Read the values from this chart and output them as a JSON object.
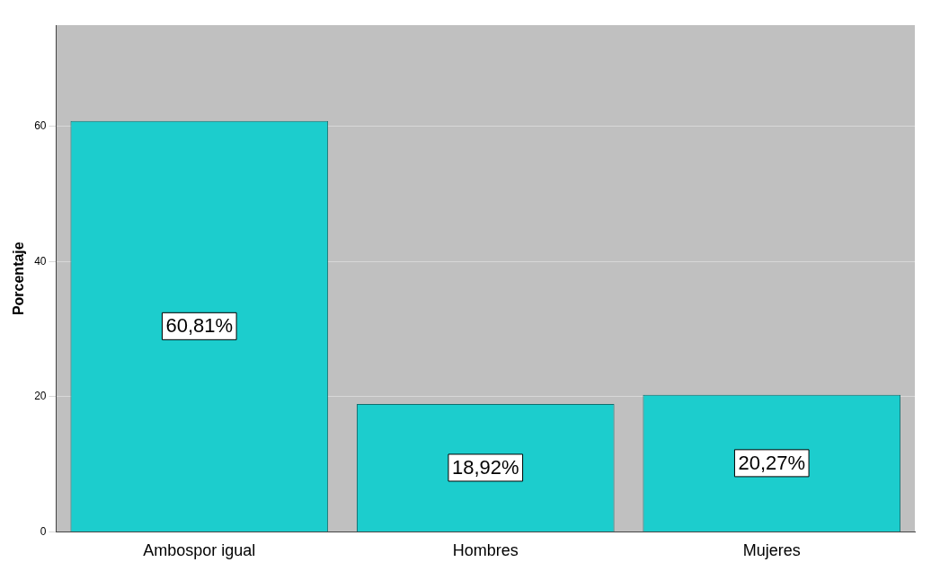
{
  "chart_data": {
    "type": "bar",
    "ylabel": "Porcentaje",
    "categories": [
      "Ambospor igual",
      "Hombres",
      "Mujeres"
    ],
    "values": [
      60.81,
      18.92,
      20.27
    ],
    "color": "#1ccdcd",
    "value_labels": [
      "60,81%",
      "18,92%",
      "20,27%"
    ],
    "ylim": [
      0,
      75
    ],
    "yticks": [
      0,
      20,
      40,
      60
    ],
    "grid": "y",
    "legend": false
  }
}
